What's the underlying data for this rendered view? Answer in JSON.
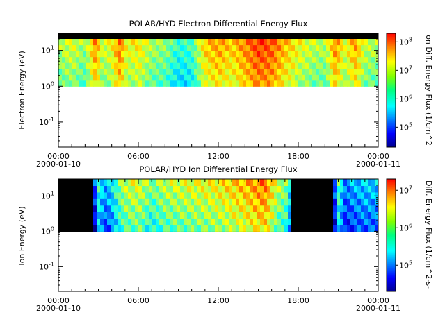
{
  "chart_data": [
    {
      "type": "heatmap",
      "title": "POLAR/HYD  Electron Differential Energy Flux",
      "ylabel": "Electron Energy (eV)",
      "y_scale": "log",
      "ylim": [
        0.02,
        30
      ],
      "y_ticks": [
        {
          "value": 0.1,
          "base": "10",
          "exp": "-1"
        },
        {
          "value": 1,
          "base": "10",
          "exp": "0"
        },
        {
          "value": 10,
          "base": "10",
          "exp": "1"
        }
      ],
      "x_range_hours": [
        0,
        24
      ],
      "x_ticks": [
        {
          "hour": 0,
          "label": "00:00",
          "date": "2000-01-10"
        },
        {
          "hour": 6,
          "label": "06:00"
        },
        {
          "hour": 12,
          "label": "12:00"
        },
        {
          "hour": 18,
          "label": "18:00"
        },
        {
          "hour": 24,
          "label": "00:00",
          "date": "2000-01-11"
        }
      ],
      "data_energy_min_eV": 1,
      "colorbar": {
        "label": "on Diff. Energy Flux (1/cm^2",
        "scale": "log",
        "range": [
          20000,
          200000000
        ],
        "ticks": [
          {
            "value": 100000,
            "base": "10",
            "exp": "5"
          },
          {
            "value": 1000000,
            "base": "10",
            "exp": "6"
          },
          {
            "value": 10000000,
            "base": "10",
            "exp": "7"
          },
          {
            "value": 100000000,
            "base": "10",
            "exp": "8"
          }
        ]
      },
      "profile_log_flux": [
        {
          "hour": 0.0,
          "value": 6.5
        },
        {
          "hour": 1.0,
          "value": 6.7
        },
        {
          "hour": 2.0,
          "value": 6.4
        },
        {
          "hour": 2.8,
          "value": 7.3
        },
        {
          "hour": 3.3,
          "value": 6.6
        },
        {
          "hour": 4.0,
          "value": 6.8
        },
        {
          "hour": 4.6,
          "value": 7.4
        },
        {
          "hour": 5.2,
          "value": 6.7
        },
        {
          "hour": 6.0,
          "value": 6.9
        },
        {
          "hour": 7.0,
          "value": 6.5
        },
        {
          "hour": 8.0,
          "value": 6.4
        },
        {
          "hour": 9.0,
          "value": 6.0
        },
        {
          "hour": 10.0,
          "value": 6.1
        },
        {
          "hour": 11.0,
          "value": 7.0
        },
        {
          "hour": 12.0,
          "value": 7.2
        },
        {
          "hour": 13.0,
          "value": 7.0
        },
        {
          "hour": 14.0,
          "value": 7.3
        },
        {
          "hour": 15.0,
          "value": 7.6
        },
        {
          "hour": 16.0,
          "value": 7.5
        },
        {
          "hour": 17.0,
          "value": 7.1
        },
        {
          "hour": 18.0,
          "value": 6.8
        },
        {
          "hour": 19.0,
          "value": 6.6
        },
        {
          "hour": 20.0,
          "value": 6.5
        },
        {
          "hour": 20.8,
          "value": 7.3
        },
        {
          "hour": 21.5,
          "value": 6.7
        },
        {
          "hour": 22.3,
          "value": 7.2
        },
        {
          "hour": 23.0,
          "value": 6.6
        },
        {
          "hour": 24.0,
          "value": 6.5
        }
      ]
    },
    {
      "type": "heatmap",
      "title": "POLAR/HYD  Ion Differential Energy Flux",
      "ylabel": "Ion Energy (eV)",
      "y_scale": "log",
      "ylim": [
        0.02,
        30
      ],
      "y_ticks": [
        {
          "value": 0.1,
          "base": "10",
          "exp": "-1"
        },
        {
          "value": 1,
          "base": "10",
          "exp": "0"
        },
        {
          "value": 10,
          "base": "10",
          "exp": "1"
        }
      ],
      "x_range_hours": [
        0,
        24
      ],
      "x_ticks": [
        {
          "hour": 0,
          "label": "00:00",
          "date": "2000-01-10"
        },
        {
          "hour": 6,
          "label": "06:00"
        },
        {
          "hour": 12,
          "label": "12:00"
        },
        {
          "hour": 18,
          "label": "18:00"
        },
        {
          "hour": 24,
          "label": "00:00",
          "date": "2000-01-11"
        }
      ],
      "data_energy_min_eV": 1,
      "colorbar": {
        "label": "Diff. Energy Flux (1/cm^2-s-",
        "scale": "log",
        "range": [
          20000,
          20000000
        ],
        "ticks": [
          {
            "value": 100000,
            "base": "10",
            "exp": "5"
          },
          {
            "value": 1000000,
            "base": "10",
            "exp": "6"
          },
          {
            "value": 10000000,
            "base": "10",
            "exp": "7"
          }
        ]
      },
      "profile_log_flux": [
        {
          "hour": 0.0,
          "value": 4.3
        },
        {
          "hour": 2.5,
          "value": 4.3
        },
        {
          "hour": 3.0,
          "value": 5.6
        },
        {
          "hour": 3.5,
          "value": 5.2
        },
        {
          "hour": 4.0,
          "value": 5.4
        },
        {
          "hour": 4.5,
          "value": 5.8
        },
        {
          "hour": 5.0,
          "value": 6.0
        },
        {
          "hour": 6.0,
          "value": 6.1
        },
        {
          "hour": 7.0,
          "value": 5.8
        },
        {
          "hour": 8.0,
          "value": 6.0
        },
        {
          "hour": 10.0,
          "value": 6.1
        },
        {
          "hour": 12.0,
          "value": 6.2
        },
        {
          "hour": 14.0,
          "value": 6.4
        },
        {
          "hour": 15.5,
          "value": 6.6
        },
        {
          "hour": 16.5,
          "value": 6.0
        },
        {
          "hour": 17.3,
          "value": 5.8
        },
        {
          "hour": 17.5,
          "value": 4.3
        },
        {
          "hour": 20.5,
          "value": 4.3
        },
        {
          "hour": 21.0,
          "value": 5.7
        },
        {
          "hour": 21.6,
          "value": 5.0
        },
        {
          "hour": 22.0,
          "value": 5.2
        },
        {
          "hour": 23.0,
          "value": 5.3
        },
        {
          "hour": 24.0,
          "value": 5.3
        }
      ]
    }
  ]
}
